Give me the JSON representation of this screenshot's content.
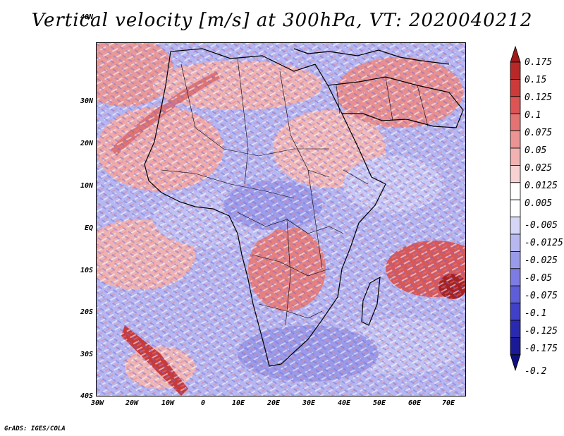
{
  "title": "Vertical velocity [m/s] at 300hPa, VT: 2020040212",
  "footer": "GrADS: IGES/COLA",
  "latitude_labels": [
    "40N",
    "30N",
    "20N",
    "10N",
    "EQ",
    "10S",
    "20S",
    "30S",
    "40S"
  ],
  "longitude_labels": [
    "30W",
    "20W",
    "10W",
    "0",
    "10E",
    "20E",
    "30E",
    "40E",
    "50E",
    "60E",
    "70E"
  ],
  "colorbar": {
    "labels": [
      "0.175",
      "0.15",
      "0.125",
      "0.1",
      "0.075",
      "0.05",
      "0.025",
      "0.0125",
      "0.005",
      "-0.005",
      "-0.0125",
      "-0.025",
      "-0.05",
      "-0.075",
      "-0.1",
      "-0.125",
      "-0.175",
      "-0.2"
    ],
    "colors": [
      "#a01a1a",
      "#b82828",
      "#cc3a3a",
      "#dc5454",
      "#e47474",
      "#ec9494",
      "#f2b2b2",
      "#f8d2d2",
      "#ffffff",
      "#ffffff",
      "#d6d6f6",
      "#b8b8f0",
      "#9a9aea",
      "#7c7ce2",
      "#5e5ed8",
      "#4040c8",
      "#2a2ab0",
      "#1a1a96",
      "#101080"
    ]
  }
}
